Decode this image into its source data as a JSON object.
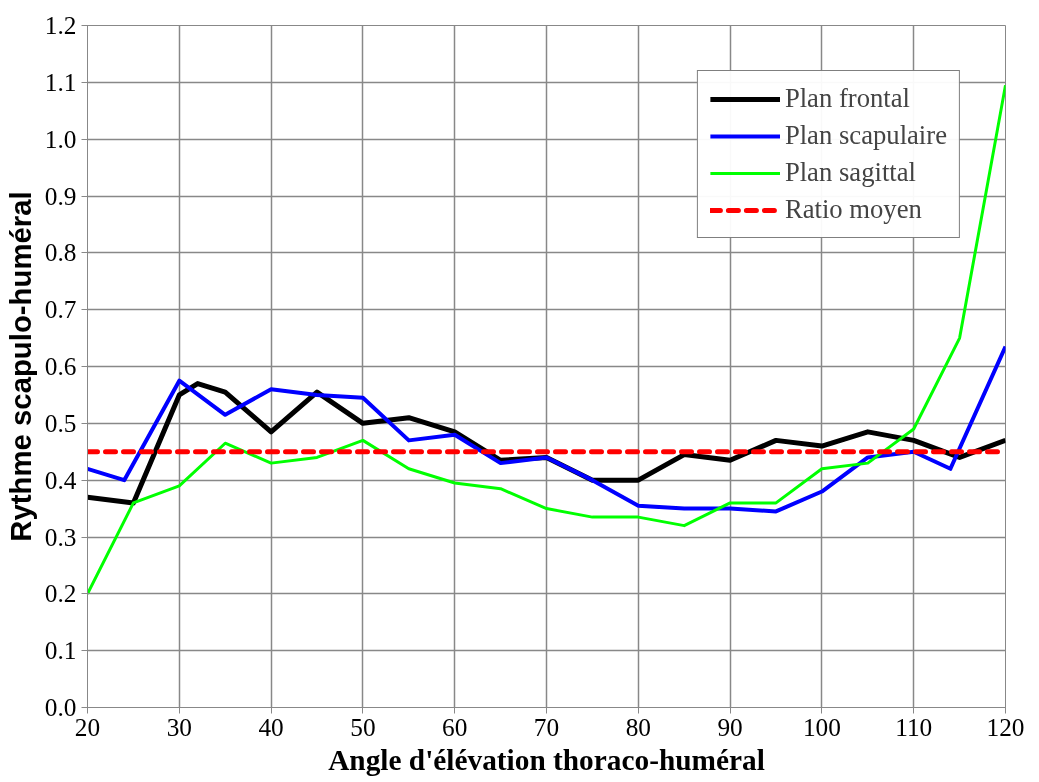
{
  "chart_data": {
    "type": "line",
    "xlabel": "Angle d'élévation thoraco-huméral",
    "ylabel": "Rythme scapulo-huméral",
    "xlim": [
      20,
      120
    ],
    "xticks": [
      20,
      30,
      40,
      50,
      60,
      70,
      80,
      90,
      100,
      110,
      120
    ],
    "ylim": [
      0,
      1.2
    ],
    "yticks": [
      {
        "value": 0,
        "label": "0.0"
      },
      0.1,
      0.2,
      0.3,
      0.4,
      0.5,
      0.6,
      0.7,
      0.8,
      0.9,
      {
        "value": 1,
        "label": "1.0"
      },
      1.1,
      1.2
    ],
    "grid": true,
    "legend": "top right",
    "marker": "none",
    "series": [
      {
        "name": "Plan frontal",
        "color": "#000000",
        "x": [
          20,
          25,
          30,
          32,
          35,
          40,
          45,
          50,
          55,
          60,
          65,
          70,
          75,
          80,
          85,
          90,
          95,
          100,
          105,
          110,
          115,
          120
        ],
        "values": [
          0.37,
          0.36,
          0.55,
          0.57,
          0.555,
          0.485,
          0.555,
          0.5,
          0.51,
          0.485,
          0.435,
          0.44,
          0.4,
          0.4,
          0.445,
          0.435,
          0.47,
          0.46,
          0.485,
          0.47,
          0.44,
          0.47
        ]
      },
      {
        "name": "Plan scapulaire",
        "color": "#0000ff",
        "x": [
          20,
          24,
          30,
          35,
          40,
          45,
          50,
          55,
          60,
          65,
          70,
          75,
          80,
          85,
          90,
          95,
          100,
          105,
          110,
          114,
          120
        ],
        "values": [
          0.42,
          0.4,
          0.575,
          0.515,
          0.56,
          0.55,
          0.545,
          0.47,
          0.48,
          0.43,
          0.44,
          0.4,
          0.355,
          0.35,
          0.35,
          0.345,
          0.38,
          0.44,
          0.45,
          0.42,
          0.635
        ]
      },
      {
        "name": "Plan sagittal",
        "color": "#00ff00",
        "x": [
          20,
          25,
          30,
          35,
          40,
          45,
          50,
          55,
          60,
          65,
          70,
          75,
          80,
          85,
          90,
          95,
          100,
          105,
          110,
          115,
          120
        ],
        "values": [
          0.2,
          0.36,
          0.39,
          0.465,
          0.43,
          0.44,
          0.47,
          0.42,
          0.395,
          0.385,
          0.35,
          0.335,
          0.335,
          0.32,
          0.36,
          0.36,
          0.42,
          0.43,
          0.49,
          0.65,
          1.095
        ]
      },
      {
        "name": "Ratio moyen",
        "color": "#ff0000",
        "line_style": "dashed",
        "x": [
          20,
          120
        ],
        "values": [
          0.45,
          0.45
        ]
      }
    ]
  }
}
